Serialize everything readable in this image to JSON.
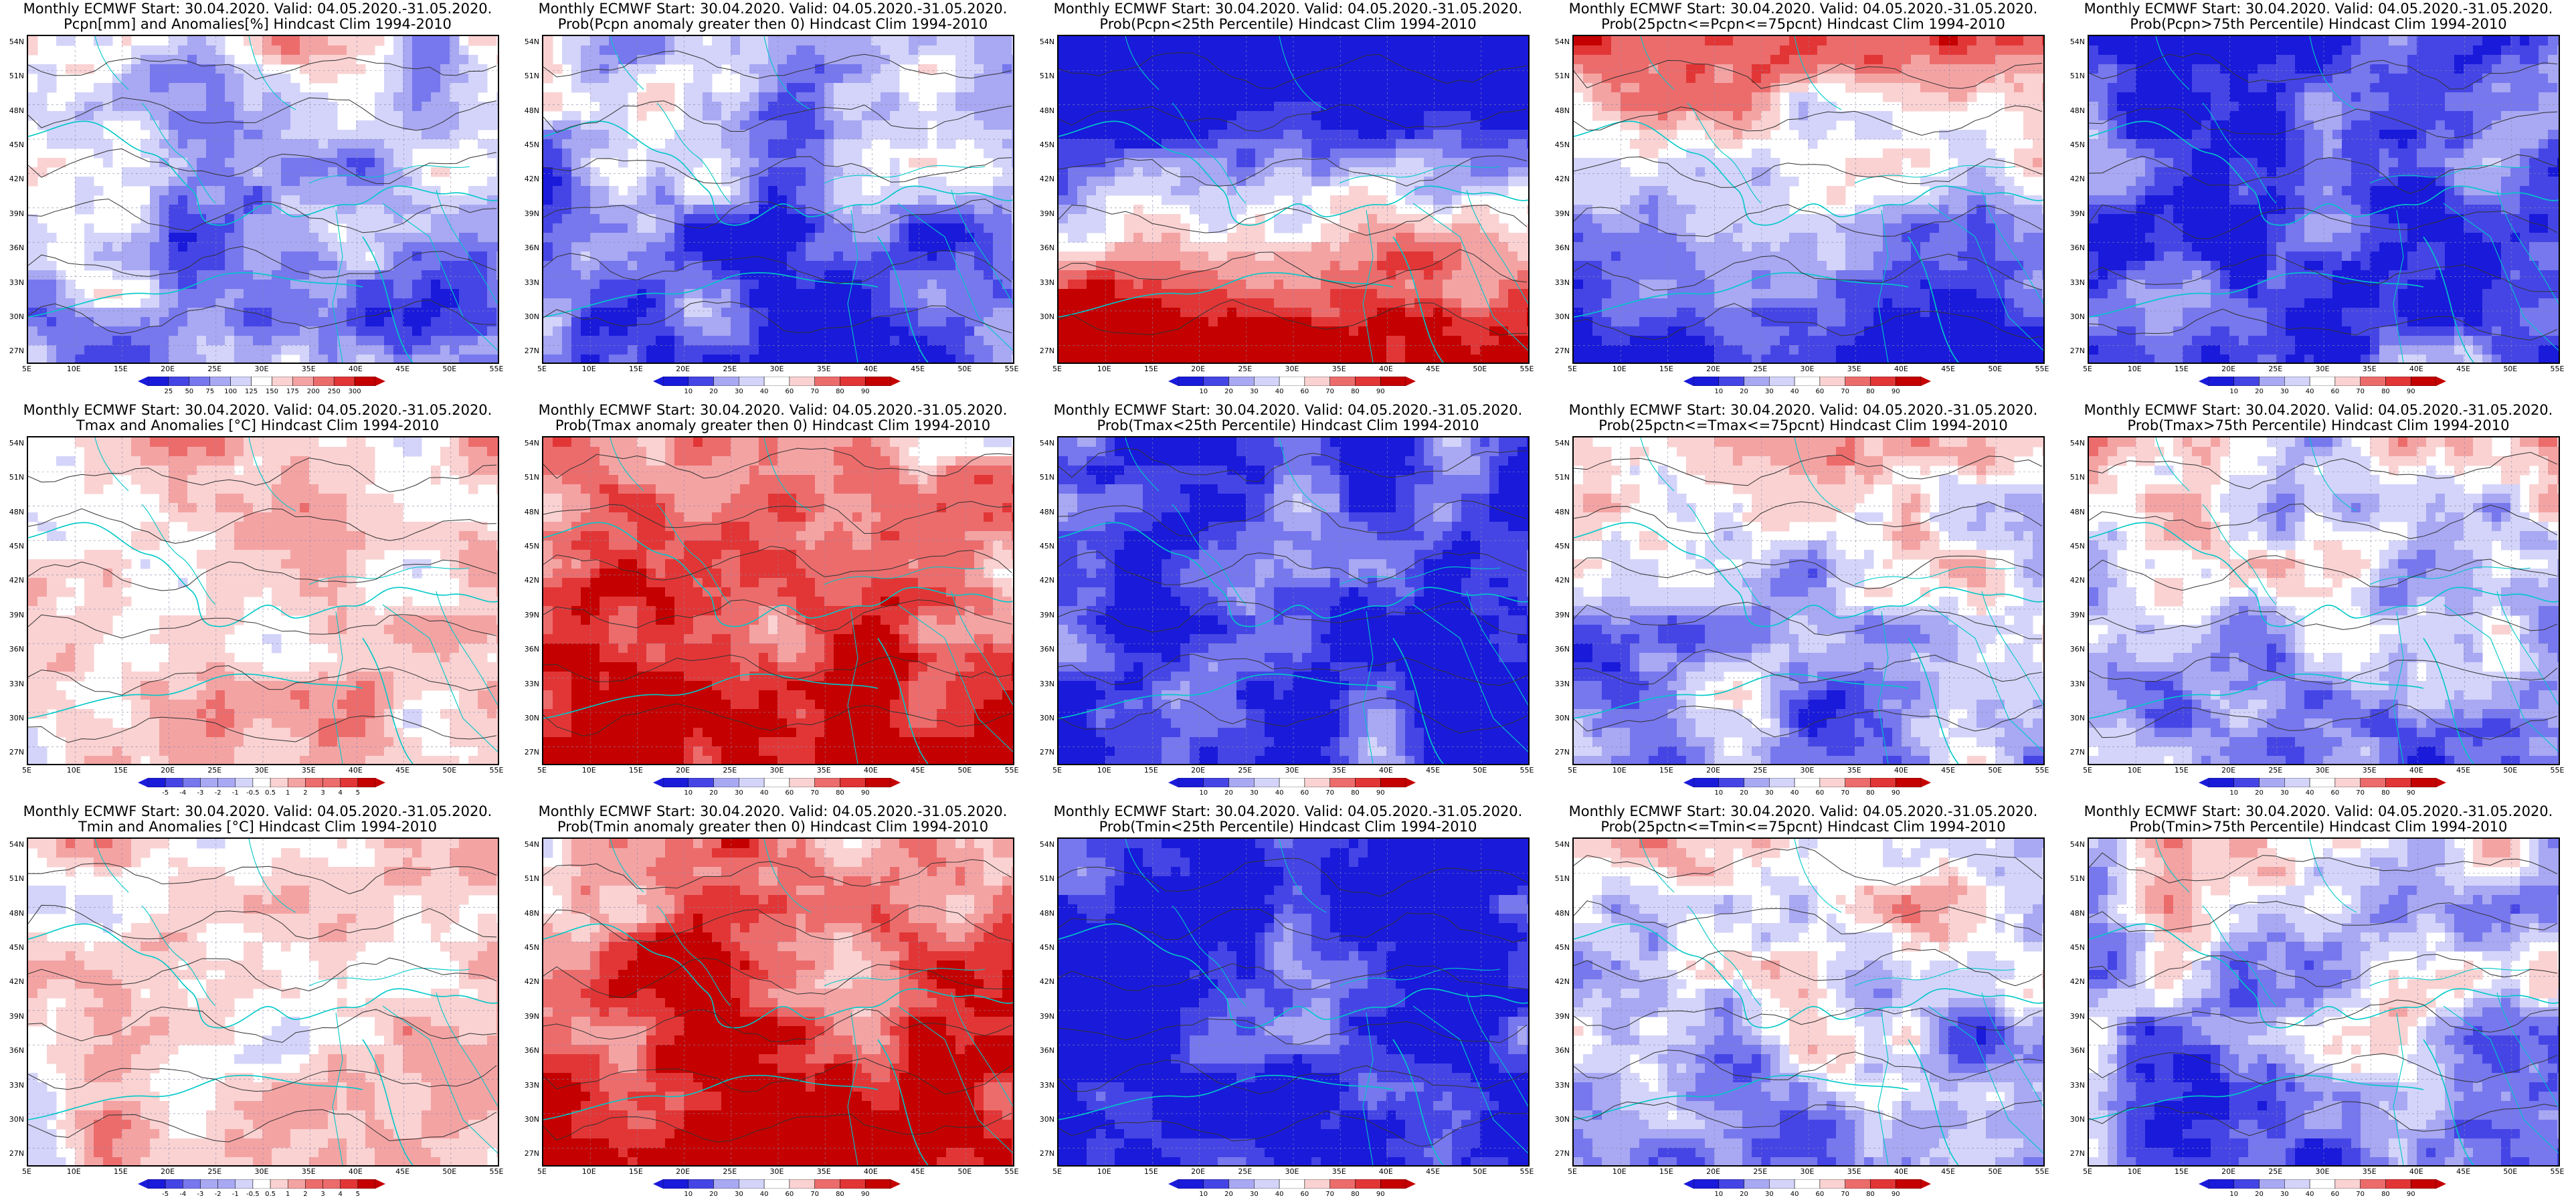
{
  "line1": "Monthly ECMWF Start: 30.04.2020. Valid: 04.05.2020.-31.05.2020.",
  "lat_ticks": [
    "54N",
    "51N",
    "48N",
    "45N",
    "42N",
    "39N",
    "36N",
    "33N",
    "30N",
    "27N"
  ],
  "lon_ticks": [
    "5E",
    "10E",
    "15E",
    "20E",
    "25E",
    "30E",
    "35E",
    "40E",
    "45E",
    "50E",
    "55E"
  ],
  "colors": {
    "diverging": [
      "#1a1adb",
      "#4545e6",
      "#7777ee",
      "#a8a8f3",
      "#d4d4fa",
      "#ffffff",
      "#fad2d2",
      "#f4a3a3",
      "#ec6c6c",
      "#e23636",
      "#c40000"
    ],
    "border": "#00c8c8",
    "contour": "#333333"
  },
  "legends": {
    "pcpn": [
      "25",
      "50",
      "75",
      "100",
      "125",
      "150",
      "175",
      "200",
      "250",
      "300"
    ],
    "temp": [
      "-5",
      "-4",
      "-3",
      "-2",
      "-1",
      "-0.5",
      "0.5",
      "1",
      "2",
      "3",
      "4",
      "5"
    ],
    "prob": [
      "10",
      "20",
      "30",
      "40",
      "60",
      "70",
      "80",
      "90"
    ]
  },
  "panels": [
    {
      "id": "p1",
      "line2": "Pcpn[mm] and Anomalies[%] Hindcast Clim 1994-2010",
      "legend": "pcpn",
      "scheme": "mixed",
      "bias": -0.25
    },
    {
      "id": "p2",
      "line2": "Prob(Pcpn anomaly greater then 0) Hindcast Clim 1994-2010",
      "legend": "prob",
      "scheme": "mixed",
      "bias": -0.4
    },
    {
      "id": "p3",
      "line2": "Prob(Pcpn<25th Percentile) Hindcast Clim 1994-2010",
      "legend": "prob",
      "scheme": "north-blue-south-red",
      "bias": 0
    },
    {
      "id": "p4",
      "line2": "Prob(25pctn<=Pcpn<=75pcnt) Hindcast Clim 1994-2010",
      "legend": "prob",
      "scheme": "south-blue",
      "bias": -0.2
    },
    {
      "id": "p5",
      "line2": "Prob(Pcpn>75th Percentile) Hindcast Clim 1994-2010",
      "legend": "prob",
      "scheme": "blue",
      "bias": -0.7
    },
    {
      "id": "p6",
      "line2": "Tmax and Anomalies [°C] Hindcast Clim 1994-2010",
      "legend": "temp",
      "scheme": "light-red",
      "bias": 0.2
    },
    {
      "id": "p7",
      "line2": "Prob(Tmax anomaly greater then 0) Hindcast Clim 1994-2010",
      "legend": "prob",
      "scheme": "red",
      "bias": 0.5
    },
    {
      "id": "p8",
      "line2": "Prob(Tmax<25th Percentile) Hindcast Clim 1994-2010",
      "legend": "prob",
      "scheme": "deep-blue",
      "bias": -0.85
    },
    {
      "id": "p9",
      "line2": "Prob(25pctn<=Tmax<=75pcnt) Hindcast Clim 1994-2010",
      "legend": "prob",
      "scheme": "mixed",
      "bias": -0.15
    },
    {
      "id": "p10",
      "line2": "Prob(Tmax>75th Percentile) Hindcast Clim 1994-2010",
      "legend": "prob",
      "scheme": "mixed",
      "bias": -0.2
    },
    {
      "id": "p11",
      "line2": "Tmin and Anomalies [°C] Hindcast Clim 1994-2010",
      "legend": "temp",
      "scheme": "light-red",
      "bias": 0.15
    },
    {
      "id": "p12",
      "line2": "Prob(Tmin anomaly greater then 0) Hindcast Clim 1994-2010",
      "legend": "prob",
      "scheme": "red",
      "bias": 0.6
    },
    {
      "id": "p13",
      "line2": "Prob(Tmin<25th Percentile) Hindcast Clim 1994-2010",
      "legend": "prob",
      "scheme": "deep-blue",
      "bias": -0.9
    },
    {
      "id": "p14",
      "line2": "Prob(25pctn<=Tmin<=75pcnt) Hindcast Clim 1994-2010",
      "legend": "prob",
      "scheme": "mixed",
      "bias": -0.1
    },
    {
      "id": "p15",
      "line2": "Prob(Tmin>75th Percentile) Hindcast Clim 1994-2010",
      "legend": "prob",
      "scheme": "mixed",
      "bias": -0.3
    }
  ]
}
